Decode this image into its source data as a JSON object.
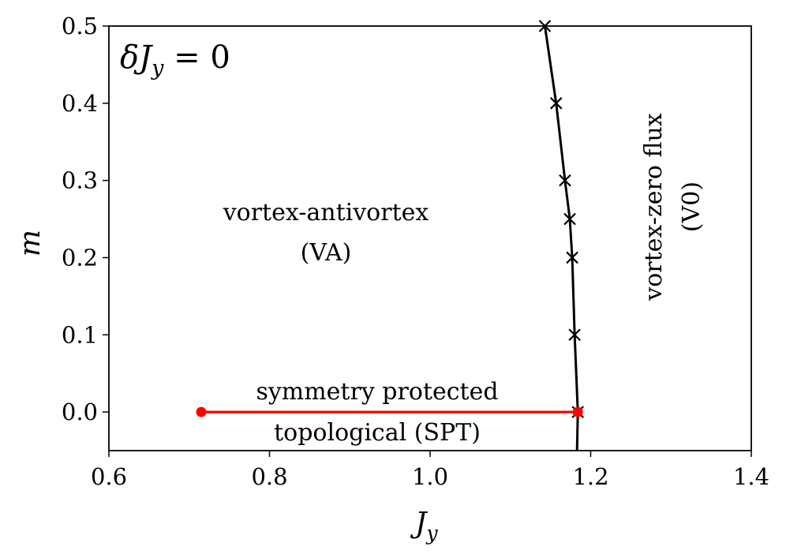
{
  "chart_data": {
    "type": "line",
    "xlabel": "J",
    "xlabel_sub": "y",
    "ylabel": "m",
    "xlim": [
      0.6,
      1.4
    ],
    "ylim": [
      -0.05,
      0.5
    ],
    "xticks": [
      "0.6",
      "0.8",
      "1.0",
      "1.2",
      "1.4"
    ],
    "yticks": [
      "0.0",
      "0.1",
      "0.2",
      "0.3",
      "0.4",
      "0.5"
    ],
    "grid": false,
    "annotation_corner": {
      "delta": "δ",
      "J": "J",
      "sub": "y",
      "rest": " = 0"
    },
    "region_labels": {
      "va_line1": "vortex-antivortex",
      "va_line2": "(VA)",
      "v0_line1": "vortex-zero flux",
      "v0_line2": "(V0)",
      "spt_line1": "symmetry protected",
      "spt_line2": "topological (SPT)"
    },
    "series": [
      {
        "role": "phase-boundary",
        "color": "#000000",
        "marker": "x",
        "x": [
          1.184,
          1.18,
          1.177,
          1.174,
          1.168,
          1.157,
          1.143
        ],
        "y": [
          0.0,
          0.1,
          0.2,
          0.25,
          0.3,
          0.4,
          0.5
        ],
        "curve_extends_to": [
          1.183,
          -0.05
        ]
      },
      {
        "role": "spt-segment",
        "color": "#ff0000",
        "marker": "o",
        "x": [
          0.715,
          1.184
        ],
        "y": [
          0.0,
          0.0
        ]
      }
    ]
  }
}
